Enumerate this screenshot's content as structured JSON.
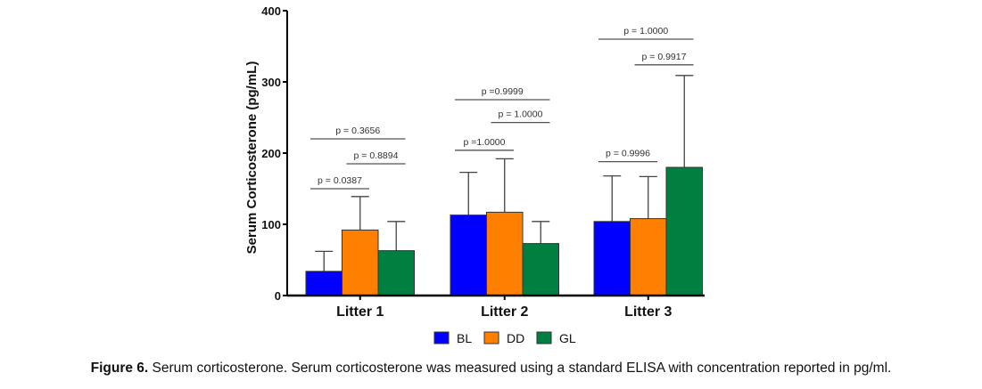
{
  "chart_data": {
    "type": "bar",
    "title": "",
    "xlabel": "",
    "ylabel": "Serum Corticosterone (pg/mL)",
    "ylim": [
      0,
      400
    ],
    "yticks": [
      0,
      100,
      200,
      300,
      400
    ],
    "grid": false,
    "categories": [
      "Litter 1",
      "Litter 2",
      "Litter 3"
    ],
    "series": [
      {
        "name": "BL",
        "color": "#0000ff",
        "values": [
          34,
          113,
          104
        ],
        "error_upper": [
          62,
          173,
          168
        ]
      },
      {
        "name": "DD",
        "color": "#ff8000",
        "values": [
          92,
          117,
          108
        ],
        "error_upper": [
          139,
          192,
          167
        ]
      },
      {
        "name": "GL",
        "color": "#008040",
        "values": [
          63,
          73,
          180
        ],
        "error_upper": [
          104,
          104,
          309
        ]
      }
    ],
    "legend_position": "bottom-center",
    "annotations": [
      {
        "category": 0,
        "from": 0,
        "to": 1,
        "level": 150,
        "text": "p = 0.0387"
      },
      {
        "category": 0,
        "from": 0,
        "to": 2,
        "level": 220,
        "text": "p = 0.3656"
      },
      {
        "category": 0,
        "from": 1,
        "to": 2,
        "level": 185,
        "text": "p = 0.8894"
      },
      {
        "category": 1,
        "from": 0,
        "to": 1,
        "level": 204,
        "text": "p =1.0000"
      },
      {
        "category": 1,
        "from": 0,
        "to": 2,
        "level": 275,
        "text": "p =0.9999"
      },
      {
        "category": 1,
        "from": 1,
        "to": 2,
        "level": 243,
        "text": "p = 1.0000"
      },
      {
        "category": 2,
        "from": 0,
        "to": 1,
        "level": 188,
        "text": "p = 0.9996"
      },
      {
        "category": 2,
        "from": 0,
        "to": 2,
        "level": 360,
        "text": "p = 1.0000"
      },
      {
        "category": 2,
        "from": 1,
        "to": 2,
        "level": 324,
        "text": "p = 0.9917"
      }
    ]
  },
  "caption": {
    "label": "Figure 6.",
    "text": " Serum corticosterone. Serum corticosterone was measured using a standard ELISA with concentration reported in pg/ml."
  }
}
